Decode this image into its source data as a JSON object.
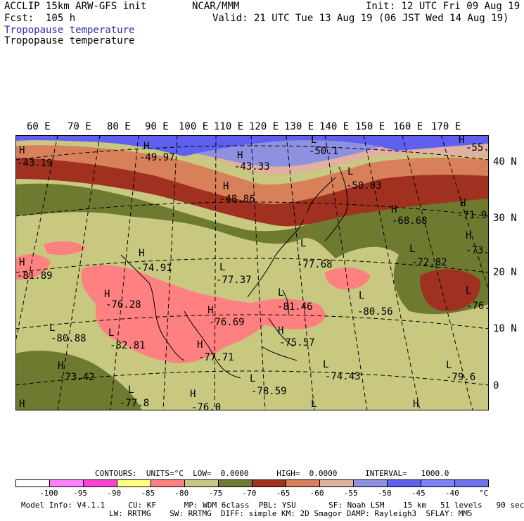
{
  "header": {
    "model": "ACCLIP 15km ARW-GFS init",
    "org": "NCAR/MMM",
    "init": "Init: 12 UTC Fri 09 Aug 19",
    "fcst": "Fcst:  105 h",
    "valid": "Valid: 21 UTC Tue 13 Aug 19 (06 JST Wed 14 Aug 19)",
    "field1": "Tropopause temperature",
    "field2": "Tropopause temperature"
  },
  "map": {
    "lon_labels": [
      "60 E",
      "70 E",
      "80 E",
      "90 E",
      "100 E",
      "110 E",
      "120 E",
      "130 E",
      "140 E",
      "150 E",
      "160 E",
      "170 E"
    ],
    "lat_labels": [
      "40 N",
      "30 N",
      "20 N",
      "10 N",
      "0"
    ],
    "extrema": [
      {
        "mark": "H",
        "value": "-43.19"
      },
      {
        "mark": "H",
        "value": "-49.97"
      },
      {
        "mark": "H",
        "value": "-43.33"
      },
      {
        "mark": "H",
        "value": "-48.86"
      },
      {
        "mark": "L",
        "value": "-50.1"
      },
      {
        "mark": "H",
        "value": "-55."
      },
      {
        "mark": "L",
        "value": "-50.03"
      },
      {
        "mark": "H",
        "value": "-68.68"
      },
      {
        "mark": "H",
        "value": "-71.9"
      },
      {
        "mark": "H",
        "value": "-73."
      },
      {
        "mark": "L",
        "value": "-72.82"
      },
      {
        "mark": "H",
        "value": "-81.89"
      },
      {
        "mark": "H",
        "value": "-74.91"
      },
      {
        "mark": "L",
        "value": "-77.37"
      },
      {
        "mark": "L",
        "value": "-77.68"
      },
      {
        "mark": "H",
        "value": "-76.28"
      },
      {
        "mark": "L",
        "value": "-81.46"
      },
      {
        "mark": "L",
        "value": "-80.56"
      },
      {
        "mark": "L",
        "value": "-76."
      },
      {
        "mark": "H",
        "value": "-76.69"
      },
      {
        "mark": "L",
        "value": "-80.88"
      },
      {
        "mark": "L",
        "value": "-82.81"
      },
      {
        "mark": "H",
        "value": "-75.57"
      },
      {
        "mark": "H",
        "value": "-77.71"
      },
      {
        "mark": "H",
        "value": "-73.42"
      },
      {
        "mark": "L",
        "value": "-74.43"
      },
      {
        "mark": "L",
        "value": "-79.6"
      },
      {
        "mark": "L",
        "value": "-78.59"
      },
      {
        "mark": "L",
        "value": "-77.8"
      },
      {
        "mark": "H",
        "value": "-76.0"
      }
    ]
  },
  "legend": {
    "contours": "CONTOURS:  UNITS=°C  LOW=  0.0000      HIGH=  0.0000      INTERVAL=   1000.0",
    "colors": [
      "#ffffff",
      "#ff80ff",
      "#ff40d0",
      "#ffff80",
      "#ff8080",
      "#c8c880",
      "#6e7a30",
      "#a03020",
      "#d8805a",
      "#e0b0a0",
      "#9090e0",
      "#6060f0",
      "#8080f8",
      "#7070f0"
    ],
    "ticks": [
      "-100",
      "-95",
      "-90",
      "-85",
      "-80",
      "-75",
      "-70",
      "-65",
      "-60",
      "-55",
      "-50",
      "-45",
      "-40",
      "°C"
    ],
    "model_info_1": "Model Info: V4.1.1     CU: KF      MP: WDM 6class  PBL: YSU       SF: Noah LSM    15 km   51 levels   90 sec",
    "model_info_2": "LW: RRTMG    SW: RRTMG  DIFF: simple KM: 2D Smagor DAMP: Rayleigh3  SFLAY: MM5"
  }
}
